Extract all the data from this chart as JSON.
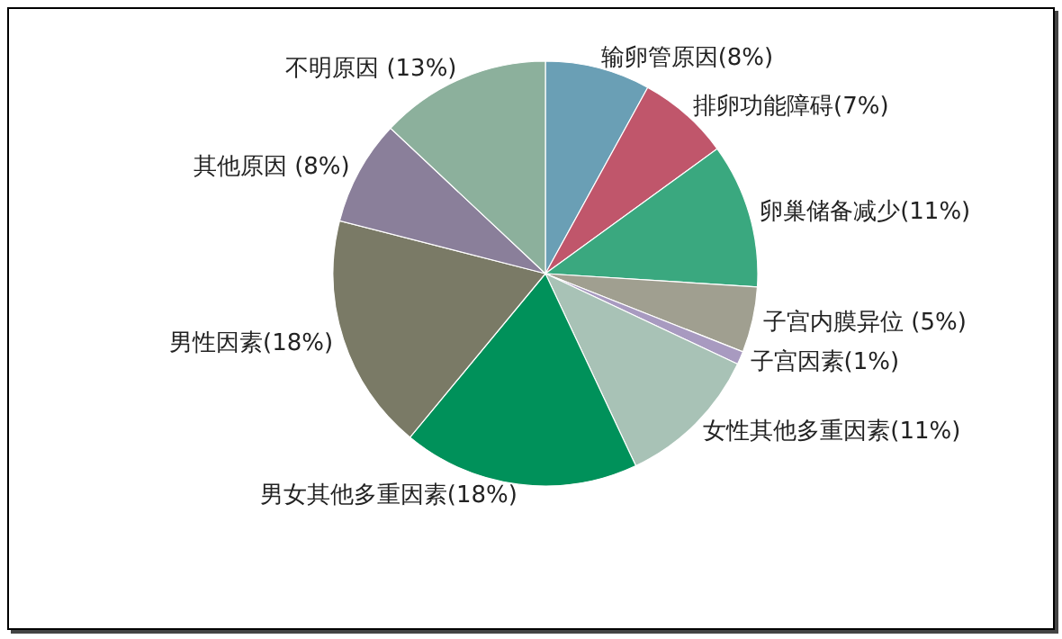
{
  "chart_data": {
    "type": "pie",
    "categories": [
      "输卵管原因",
      "排卵功能障碍",
      "卵巢储备减少",
      "子宫内膜异位",
      "子宫因素",
      "女性其他多重因素",
      "男女其他多重因素",
      "男性因素",
      "其他原因",
      "不明原因"
    ],
    "values": [
      8,
      7,
      11,
      5,
      1,
      11,
      18,
      18,
      8,
      13
    ],
    "value_labels": [
      "(8%)",
      "(7%)",
      "(11%)",
      " (5%)",
      "(1%)",
      "(11%)",
      "(18%)",
      "(18%)",
      " (8%)",
      " (13%)"
    ],
    "colors": [
      "#6a9fb5",
      "#c0566b",
      "#3aa87f",
      "#a09f90",
      "#a89ac0",
      "#a8c2b6",
      "#00915a",
      "#7a7a66",
      "#8a7f9a",
      "#8cb09c"
    ]
  }
}
